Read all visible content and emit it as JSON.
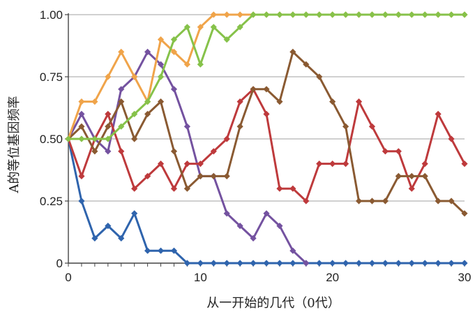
{
  "chart_data": {
    "type": "line",
    "title": "",
    "xlabel": "从一开始的几代（0代）",
    "ylabel": "A的等位基因频率",
    "xlim": [
      0,
      30
    ],
    "ylim": [
      0,
      1
    ],
    "x_ticks": [
      "0",
      "10",
      "20",
      "30"
    ],
    "y_ticks": [
      "0",
      "0.25",
      "0.50",
      "0.75",
      "1.00"
    ],
    "grid": "horizontal",
    "marker": "diamond",
    "series": [
      {
        "color": "#2f64ad",
        "x": [
          0,
          1,
          2,
          3,
          4,
          5,
          6,
          7,
          8,
          9,
          10,
          11,
          12,
          13,
          14,
          15,
          16,
          17,
          18,
          19,
          20,
          21,
          22,
          23,
          24,
          25,
          26,
          27,
          28,
          29,
          30
        ],
        "y": [
          0.5,
          0.25,
          0.1,
          0.15,
          0.1,
          0.2,
          0.05,
          0.05,
          0.05,
          0,
          0,
          0,
          0,
          0,
          0,
          0,
          0,
          0,
          0,
          0,
          0,
          0,
          0,
          0,
          0,
          0,
          0,
          0,
          0,
          0,
          0
        ]
      },
      {
        "color": "#7452a0",
        "x": [
          0,
          1,
          2,
          3,
          4,
          5,
          6,
          7,
          8,
          9,
          10,
          11,
          12,
          13,
          14,
          15,
          16,
          17,
          18
        ],
        "y": [
          0.5,
          0.6,
          0.5,
          0.45,
          0.7,
          0.75,
          0.85,
          0.8,
          0.7,
          0.55,
          0.35,
          0.35,
          0.2,
          0.15,
          0.1,
          0.2,
          0.15,
          0.05,
          0
        ]
      },
      {
        "color": "#be3a3c",
        "x": [
          0,
          1,
          2,
          3,
          4,
          5,
          6,
          7,
          8,
          9,
          10,
          11,
          12,
          13,
          14,
          15,
          16,
          17,
          18,
          19,
          20,
          21,
          22,
          23,
          24,
          25,
          26,
          27,
          28,
          29,
          30
        ],
        "y": [
          0.5,
          0.35,
          0.5,
          0.6,
          0.45,
          0.3,
          0.35,
          0.4,
          0.3,
          0.4,
          0.4,
          0.45,
          0.5,
          0.65,
          0.7,
          0.6,
          0.3,
          0.3,
          0.25,
          0.4,
          0.4,
          0.4,
          0.65,
          0.55,
          0.45,
          0.45,
          0.3,
          0.4,
          0.6,
          0.5,
          0.4
        ]
      },
      {
        "color": "#8a5a32",
        "x": [
          0,
          1,
          2,
          3,
          4,
          5,
          6,
          7,
          8,
          9,
          10,
          11,
          12,
          13,
          14,
          15,
          16,
          17,
          18,
          19,
          20,
          21,
          22,
          23,
          24,
          25,
          26,
          27,
          28,
          29,
          30
        ],
        "y": [
          0.5,
          0.55,
          0.45,
          0.55,
          0.65,
          0.5,
          0.6,
          0.65,
          0.45,
          0.3,
          0.35,
          0.35,
          0.35,
          0.55,
          0.7,
          0.7,
          0.65,
          0.85,
          0.8,
          0.75,
          0.65,
          0.55,
          0.25,
          0.25,
          0.25,
          0.35,
          0.35,
          0.35,
          0.25,
          0.25,
          0.2
        ]
      },
      {
        "color": "#f0a44a",
        "x": [
          0,
          1,
          2,
          3,
          4,
          5,
          6,
          7,
          8,
          9,
          10,
          11,
          12,
          13,
          14,
          15,
          16,
          17,
          18,
          19,
          20,
          21,
          22,
          23,
          24,
          25,
          26,
          27,
          28,
          29,
          30
        ],
        "y": [
          0.5,
          0.65,
          0.65,
          0.75,
          0.85,
          0.75,
          0.65,
          0.9,
          0.85,
          0.8,
          0.95,
          1,
          1,
          1,
          1,
          1,
          1,
          1,
          1,
          1,
          1,
          1,
          1,
          1,
          1,
          1,
          1,
          1,
          1,
          1,
          1
        ]
      },
      {
        "color": "#86c24a",
        "x": [
          0,
          1,
          2,
          3,
          4,
          5,
          6,
          7,
          8,
          9,
          10,
          11,
          12,
          13,
          14,
          15,
          16,
          17,
          18,
          19,
          20,
          21,
          22,
          23,
          24,
          25,
          26,
          27,
          28,
          29,
          30
        ],
        "y": [
          0.5,
          0.5,
          0.5,
          0.5,
          0.55,
          0.6,
          0.65,
          0.75,
          0.9,
          0.95,
          0.8,
          0.95,
          0.9,
          0.95,
          1,
          1,
          1,
          1,
          1,
          1,
          1,
          1,
          1,
          1,
          1,
          1,
          1,
          1,
          1,
          1,
          1
        ]
      }
    ]
  }
}
